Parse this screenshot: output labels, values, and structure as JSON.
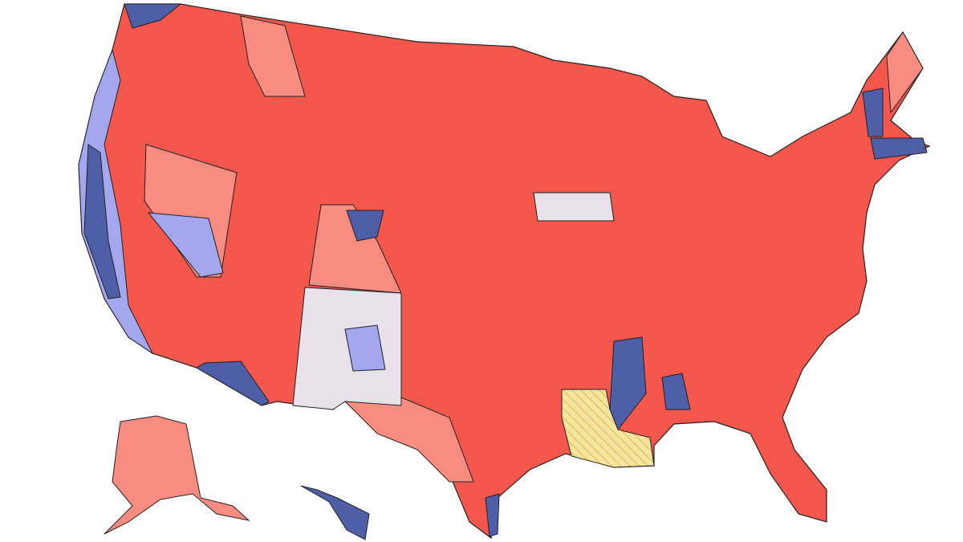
{
  "map": {
    "fills": [
      "#f5574d",
      "#f98c80",
      "#4e5ea7",
      "#a3a8ee",
      "#e7e2ea",
      "#f4e6a0"
    ],
    "border": "#222222"
  }
}
